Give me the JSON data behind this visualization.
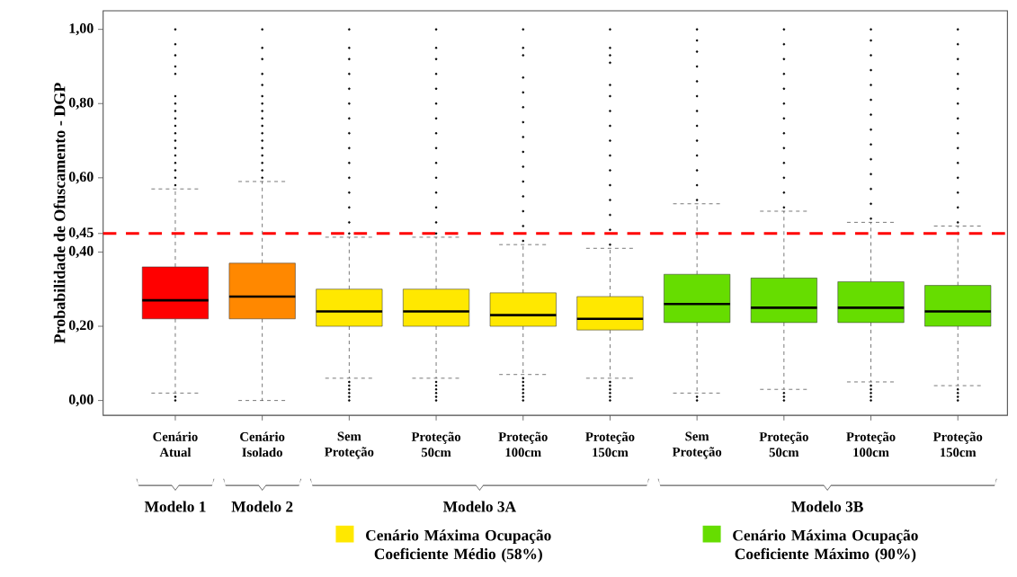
{
  "chart_data": {
    "type": "box",
    "ylabel": "Probabilidade de Ofuscamento - DGP",
    "categories": [
      "Cenário Atual",
      "Cenário Isolado",
      "Sem Proteção",
      "Proteção 50cm",
      "Proteção 100cm",
      "Proteção 150cm",
      "Sem Proteção",
      "Proteção 50cm",
      "Proteção 100cm",
      "Proteção 150cm"
    ],
    "series": [
      {
        "color": "#ff0000",
        "boxes": [
          {
            "low": 0.02,
            "q1": 0.22,
            "median": 0.27,
            "q3": 0.36,
            "high": 0.57,
            "outliers": [
              0.0,
              0.01,
              0.58,
              0.6,
              0.62,
              0.64,
              0.66,
              0.68,
              0.7,
              0.72,
              0.74,
              0.76,
              0.78,
              0.8,
              0.82,
              0.88,
              0.9,
              0.93,
              0.96,
              1.0
            ]
          },
          null,
          null,
          null,
          null,
          null,
          null,
          null,
          null,
          null
        ]
      },
      {
        "color": "#ff8800",
        "boxes": [
          null,
          {
            "low": 0.0,
            "q1": 0.22,
            "median": 0.28,
            "q3": 0.37,
            "high": 0.59,
            "outliers": [
              0.6,
              0.62,
              0.64,
              0.66,
              0.68,
              0.7,
              0.72,
              0.74,
              0.76,
              0.78,
              0.8,
              0.82,
              0.85,
              0.88,
              0.92,
              0.95,
              1.0
            ]
          },
          null,
          null,
          null,
          null,
          null,
          null,
          null,
          null
        ]
      },
      {
        "name": "Cenário Máxima Ocupação Coeficiente Médio (58%)",
        "color": "#ffe800",
        "boxes": [
          null,
          null,
          {
            "low": 0.06,
            "q1": 0.2,
            "median": 0.24,
            "q3": 0.3,
            "high": 0.44,
            "outliers": [
              0.0,
              0.01,
              0.02,
              0.03,
              0.04,
              0.05,
              0.45,
              0.48,
              0.52,
              0.56,
              0.6,
              0.64,
              0.68,
              0.72,
              0.76,
              0.8,
              0.84,
              0.88,
              0.92,
              0.95,
              1.0
            ]
          },
          {
            "low": 0.06,
            "q1": 0.2,
            "median": 0.24,
            "q3": 0.3,
            "high": 0.44,
            "outliers": [
              0.0,
              0.01,
              0.02,
              0.03,
              0.04,
              0.05,
              0.45,
              0.48,
              0.52,
              0.56,
              0.6,
              0.64,
              0.68,
              0.72,
              0.76,
              0.8,
              0.84,
              0.88,
              0.92,
              0.95,
              1.0
            ]
          },
          {
            "low": 0.07,
            "q1": 0.2,
            "median": 0.23,
            "q3": 0.29,
            "high": 0.42,
            "outliers": [
              0.0,
              0.01,
              0.02,
              0.03,
              0.04,
              0.05,
              0.06,
              0.43,
              0.47,
              0.51,
              0.55,
              0.59,
              0.63,
              0.67,
              0.71,
              0.75,
              0.79,
              0.83,
              0.87,
              0.93,
              0.95,
              1.0
            ]
          },
          {
            "low": 0.06,
            "q1": 0.19,
            "median": 0.22,
            "q3": 0.28,
            "high": 0.41,
            "outliers": [
              0.0,
              0.01,
              0.02,
              0.03,
              0.04,
              0.05,
              0.42,
              0.46,
              0.5,
              0.54,
              0.58,
              0.62,
              0.66,
              0.7,
              0.74,
              0.78,
              0.82,
              0.85,
              0.91,
              0.93,
              0.95,
              1.0
            ]
          },
          null,
          null,
          null,
          null
        ]
      },
      {
        "name": "Cenário Máxima Ocupação Coeficiente Máximo (90%)",
        "color": "#66dd00",
        "boxes": [
          null,
          null,
          null,
          null,
          null,
          null,
          {
            "low": 0.02,
            "q1": 0.21,
            "median": 0.26,
            "q3": 0.34,
            "high": 0.53,
            "outliers": [
              0.0,
              0.01,
              0.54,
              0.58,
              0.62,
              0.66,
              0.7,
              0.74,
              0.78,
              0.82,
              0.86,
              0.9,
              0.94,
              0.97,
              1.0
            ]
          },
          {
            "low": 0.03,
            "q1": 0.21,
            "median": 0.25,
            "q3": 0.33,
            "high": 0.51,
            "outliers": [
              0.0,
              0.01,
              0.02,
              0.52,
              0.56,
              0.6,
              0.64,
              0.68,
              0.72,
              0.76,
              0.8,
              0.84,
              0.88,
              0.92,
              0.96,
              1.0
            ]
          },
          {
            "low": 0.05,
            "q1": 0.21,
            "median": 0.25,
            "q3": 0.32,
            "high": 0.48,
            "outliers": [
              0.0,
              0.01,
              0.02,
              0.03,
              0.04,
              0.49,
              0.53,
              0.57,
              0.61,
              0.65,
              0.69,
              0.73,
              0.77,
              0.81,
              0.85,
              0.89,
              0.93,
              0.97,
              1.0
            ]
          },
          {
            "low": 0.04,
            "q1": 0.2,
            "median": 0.24,
            "q3": 0.31,
            "high": 0.47,
            "outliers": [
              0.0,
              0.01,
              0.02,
              0.03,
              0.48,
              0.52,
              0.56,
              0.6,
              0.64,
              0.68,
              0.72,
              0.76,
              0.8,
              0.84,
              0.88,
              0.92,
              0.96,
              1.0
            ]
          }
        ]
      }
    ],
    "ylim": [
      -0.04,
      1.05
    ],
    "yticks": [
      {
        "value": 0,
        "label": "0,00"
      },
      {
        "value": 0.2,
        "label": "0,20"
      },
      {
        "value": 0.4,
        "label": "0,40"
      },
      {
        "value": 0.45,
        "label": "0,45"
      },
      {
        "value": 0.6,
        "label": "0,60"
      },
      {
        "value": 0.8,
        "label": "0,80"
      },
      {
        "value": 1.0,
        "label": "1,00"
      }
    ],
    "ref_lines": [
      {
        "axis": "y",
        "value": 0.45,
        "color": "#ff0000",
        "line_style": "dashed"
      }
    ],
    "annotations": [
      "Modelo 1",
      "Modelo 2",
      "Modelo 3A",
      "Modelo 3B"
    ],
    "legend": "bottom"
  }
}
